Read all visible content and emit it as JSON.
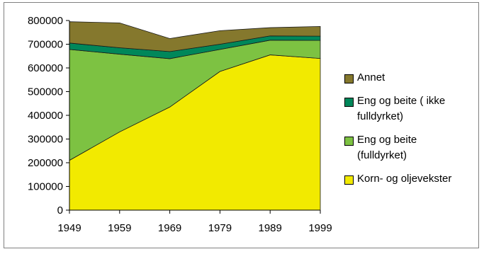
{
  "chart_data": {
    "type": "area",
    "stacked": true,
    "x": [
      1949,
      1959,
      1969,
      1979,
      1989,
      1999
    ],
    "x_ticks": [
      "1949",
      "1959",
      "1969",
      "1979",
      "1989",
      "1999"
    ],
    "y_ticks": [
      "0",
      "100000",
      "200000",
      "300000",
      "400000",
      "500000",
      "600000",
      "700000",
      "800000"
    ],
    "ylim": [
      0,
      800000
    ],
    "legend_position": "right",
    "series": [
      {
        "name": "Korn- og oljevekster",
        "color": "#f2ea00",
        "values": [
          210000,
          330000,
          435000,
          585000,
          655000,
          640000
        ]
      },
      {
        "name": "Eng og beite\n(fulldyrket)",
        "color": "#7dc242",
        "values": [
          468000,
          328000,
          204000,
          93000,
          62000,
          76000
        ]
      },
      {
        "name": "Eng og beite ( ikke\nfulldyrket)",
        "color": "#00875a",
        "values": [
          27000,
          27000,
          30000,
          22000,
          18000,
          18000
        ]
      },
      {
        "name": "Annet",
        "color": "#85782d",
        "values": [
          90000,
          105000,
          55000,
          57000,
          35000,
          41000
        ]
      }
    ],
    "legend": [
      "Annet",
      "Eng og beite ( ikke\nfulldyrket)",
      "Eng og beite\n(fulldyrket)",
      "Korn- og oljevekster"
    ]
  }
}
